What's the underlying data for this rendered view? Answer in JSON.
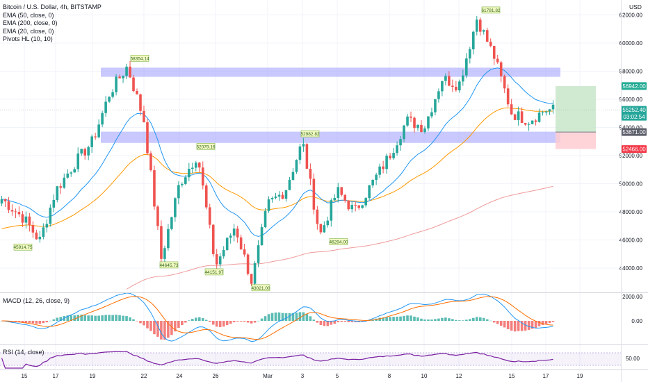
{
  "header": {
    "title": "Bitcoin / U.S. Dollar, 4h, BITSTAMP",
    "indicators": [
      "EMA (50, close, 0)",
      "EMA (200, close, 0)",
      "EMA (20, close, 0)",
      "Pivots HL (10, 10)"
    ]
  },
  "price_axis": {
    "currency": "USD",
    "ticks": [
      "62000.00",
      "60000.00",
      "58000.00",
      "56000.00",
      "54000.00",
      "52000.00",
      "50000.00",
      "48000.00",
      "46000.00",
      "44000.00"
    ],
    "badges": {
      "target": "56942.00",
      "last_price": "55252.40",
      "countdown": "03:02:54",
      "entry": "53671.00",
      "stop": "52466.00"
    }
  },
  "pivots": {
    "highs": [
      "58354.14",
      "52079.16",
      "52982.82",
      "61781.82"
    ],
    "lows": [
      "45914.75",
      "44645.73",
      "44151.97",
      "43021.00",
      "46294.00"
    ]
  },
  "macd": {
    "label": "MACD (12, 26, close, 9)",
    "ticks": [
      "2000.00",
      "0.00"
    ]
  },
  "rsi": {
    "label": "RSI (14, close)",
    "ticks": [
      "50.00"
    ]
  },
  "time_axis": {
    "labels": [
      "15",
      "17",
      "19",
      "22",
      "24",
      "26",
      "Mar",
      "3",
      "5",
      "8",
      "10",
      "12",
      "15",
      "17",
      "19"
    ]
  },
  "colors": {
    "up": "#26a69a",
    "down": "#ef5350",
    "ema20": "#2196f3",
    "ema50": "#ff9800",
    "ema200": "#ef9a9a",
    "zone": "#9c9cff",
    "rsi": "#7b1fa2",
    "target_zone": "#c8e6c9",
    "stop_zone": "#ffcdd2"
  },
  "chart_data": {
    "type": "candlestick",
    "title": "Bitcoin / U.S. Dollar, 4h, BITSTAMP",
    "x_labels": [
      "15",
      "17",
      "19",
      "22",
      "24",
      "26",
      "Mar",
      "3",
      "5",
      "8",
      "10",
      "12",
      "15",
      "17",
      "19"
    ],
    "ylim": [
      42500,
      63000
    ],
    "grid": true,
    "swing_path": [
      {
        "x": "Feb 15",
        "y": 47500
      },
      {
        "x": "Feb 16",
        "y": 45914.75
      },
      {
        "x": "Feb 17",
        "y": 49500
      },
      {
        "x": "Feb 18",
        "y": 51500
      },
      {
        "x": "Feb 19",
        "y": 53000
      },
      {
        "x": "Feb 20",
        "y": 56500
      },
      {
        "x": "Feb 21",
        "y": 58354.14
      },
      {
        "x": "Feb 22",
        "y": 54500
      },
      {
        "x": "Feb 23",
        "y": 44645.73
      },
      {
        "x": "Feb 24",
        "y": 50000
      },
      {
        "x": "Feb 25",
        "y": 52079.16
      },
      {
        "x": "Feb 26",
        "y": 44151.97
      },
      {
        "x": "Feb 27",
        "y": 47000
      },
      {
        "x": "Feb 28",
        "y": 43021.0
      },
      {
        "x": "Mar 1",
        "y": 48500
      },
      {
        "x": "Mar 2",
        "y": 49500
      },
      {
        "x": "Mar 3",
        "y": 52982.82
      },
      {
        "x": "Mar 4",
        "y": 46294.0
      },
      {
        "x": "Mar 5",
        "y": 49500
      },
      {
        "x": "Mar 6",
        "y": 48000
      },
      {
        "x": "Mar 8",
        "y": 52000
      },
      {
        "x": "Mar 9",
        "y": 54500
      },
      {
        "x": "Mar 10",
        "y": 54000
      },
      {
        "x": "Mar 11",
        "y": 57500
      },
      {
        "x": "Mar 12",
        "y": 57000
      },
      {
        "x": "Mar 13",
        "y": 61781.82
      },
      {
        "x": "Mar 14",
        "y": 59000
      },
      {
        "x": "Mar 15",
        "y": 55000
      },
      {
        "x": "Mar 16",
        "y": 54500
      },
      {
        "x": "Mar 17",
        "y": 55252.4
      }
    ],
    "zones": [
      {
        "from": 57600,
        "to": 58250
      },
      {
        "from": 52900,
        "to": 53700
      }
    ],
    "trade": {
      "entry": 53671.0,
      "target": 56942.0,
      "stop": 52466.0,
      "last": 55252.4
    }
  }
}
